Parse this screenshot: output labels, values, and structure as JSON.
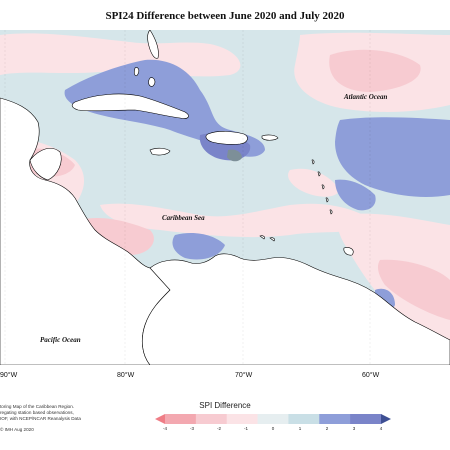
{
  "title": "SPI24 Difference between June 2020 and July 2020",
  "labels": {
    "atlantic": "Atlantic Ocean",
    "caribbean": "Caribbean Sea",
    "pacific": "Pacific Ocean"
  },
  "longitudes": [
    "90°W",
    "80°W",
    "70°W",
    "60°W"
  ],
  "legend": {
    "title": "SPI Difference",
    "ticks": [
      "-4",
      "-3",
      "-2",
      "-1",
      "0",
      "1",
      "2",
      "3",
      "4"
    ],
    "colors": [
      "#ef7d86",
      "#f3a8b0",
      "#f7cbd1",
      "#fbe3e6",
      "#e6eef0",
      "#c9dfe6",
      "#8e9ed9",
      "#7a84c9",
      "#3e4f93"
    ]
  },
  "credits": [
    "toring Map of the Caribbean Region.",
    "regating station based observations,",
    "IOF, with NCEP/NCAR Reanalysis Data",
    "© IMH Aug 2020"
  ],
  "colors": {
    "land": "#ffffff",
    "coast": "#000000",
    "neutral_blue": "#d6e6ea",
    "light_pink": "#fbe3e6",
    "pink": "#f3b8c0",
    "blue": "#8e9ed9",
    "dark_blue": "#6d7fd0"
  }
}
